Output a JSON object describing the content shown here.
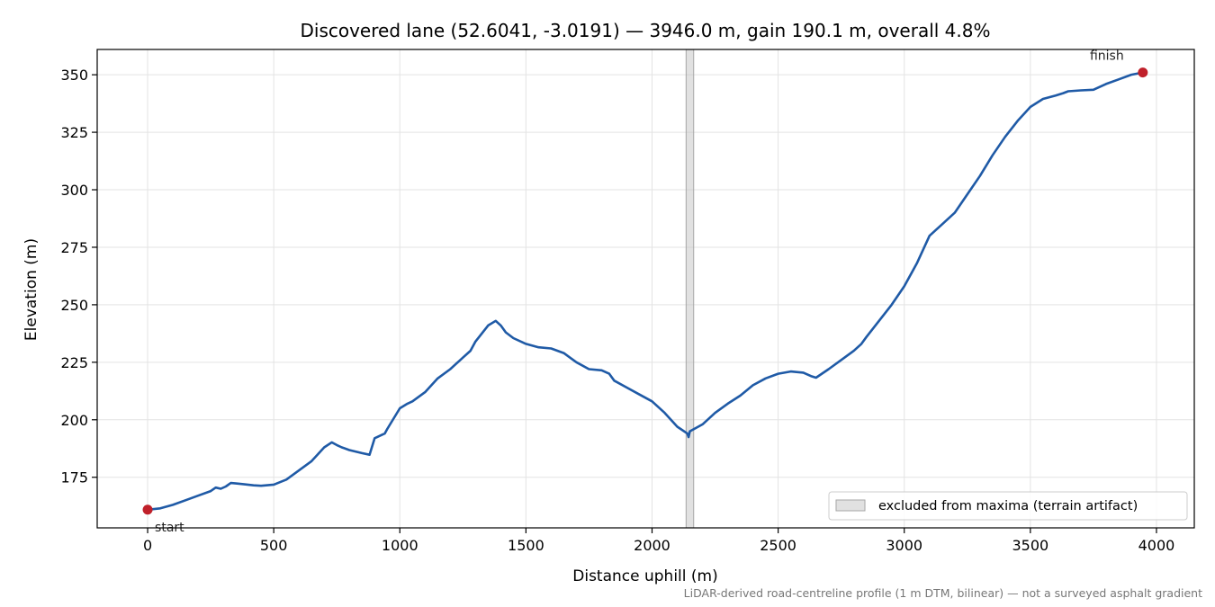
{
  "chart_data": {
    "type": "line",
    "title": "Discovered lane (52.6041, -3.0191) — 3946.0 m, gain 190.1 m, overall 4.8%",
    "xlabel": "Distance uphill (m)",
    "ylabel": "Elevation (m)",
    "xlim": [
      -200,
      4150
    ],
    "ylim": [
      153,
      361
    ],
    "x_ticks": [
      0,
      500,
      1000,
      1500,
      2000,
      2500,
      3000,
      3500,
      4000
    ],
    "y_ticks": [
      175,
      200,
      225,
      250,
      275,
      300,
      325,
      350
    ],
    "grid": true,
    "line_color": "#1f5aa6",
    "point_color": "#c0202a",
    "series": [
      {
        "x": [
          0,
          50,
          100,
          150,
          200,
          250,
          270,
          290,
          310,
          330,
          350,
          380,
          420,
          450,
          500,
          550,
          600,
          650,
          700,
          730,
          750,
          770,
          800,
          850,
          880,
          900,
          920,
          940,
          950,
          1000,
          1030,
          1050,
          1100,
          1150,
          1200,
          1250,
          1280,
          1300,
          1350,
          1380,
          1400,
          1420,
          1450,
          1500,
          1550,
          1600,
          1650,
          1700,
          1750,
          1800,
          1830,
          1850,
          1900,
          1950,
          2000,
          2050,
          2100,
          2140,
          2145,
          2150,
          2200,
          2250,
          2300,
          2350,
          2400,
          2450,
          2500,
          2550,
          2600,
          2630,
          2650,
          2700,
          2750,
          2800,
          2830,
          2850,
          2900,
          2950,
          3000,
          3050,
          3100,
          3150,
          3200,
          3250,
          3300,
          3350,
          3400,
          3450,
          3500,
          3550,
          3600,
          3630,
          3650,
          3700,
          3750,
          3800,
          3850,
          3900,
          3946
        ],
        "y": [
          160.9,
          161.5,
          163,
          165,
          167,
          169,
          170.5,
          170,
          171,
          172.5,
          172.3,
          172,
          171.5,
          171.3,
          171.8,
          174,
          178,
          182,
          188,
          190.2,
          189,
          188,
          186.8,
          185.5,
          184.8,
          192,
          193,
          194,
          196,
          205,
          207,
          208,
          212,
          218,
          222,
          227,
          230,
          234,
          241,
          243,
          241,
          238,
          235.5,
          233,
          231.5,
          231,
          229,
          225,
          222,
          221.5,
          220,
          217,
          214,
          211,
          208,
          203,
          197,
          194,
          192.5,
          195,
          198,
          203,
          207,
          210.5,
          215,
          218,
          220,
          221,
          220.5,
          219,
          218.3,
          222,
          226,
          230,
          233,
          236,
          243,
          250,
          258,
          268,
          280,
          285,
          290,
          298,
          306,
          315,
          323,
          330,
          336,
          339.5,
          341,
          342,
          342.8,
          343.2,
          343.5,
          346,
          348,
          350,
          351
        ]
      }
    ],
    "excluded_band": [
      2135,
      2165
    ],
    "legend": {
      "placement": "lower-right",
      "entries": [
        "excluded from maxima (terrain artifact)"
      ]
    },
    "annotations": [
      {
        "text": "start",
        "x": 0,
        "y": 160.9
      },
      {
        "text": "finish",
        "x": 3946,
        "y": 351
      }
    ],
    "footnote": "LiDAR-derived road-centreline profile (1 m DTM, bilinear) — not a surveyed asphalt gradient"
  }
}
